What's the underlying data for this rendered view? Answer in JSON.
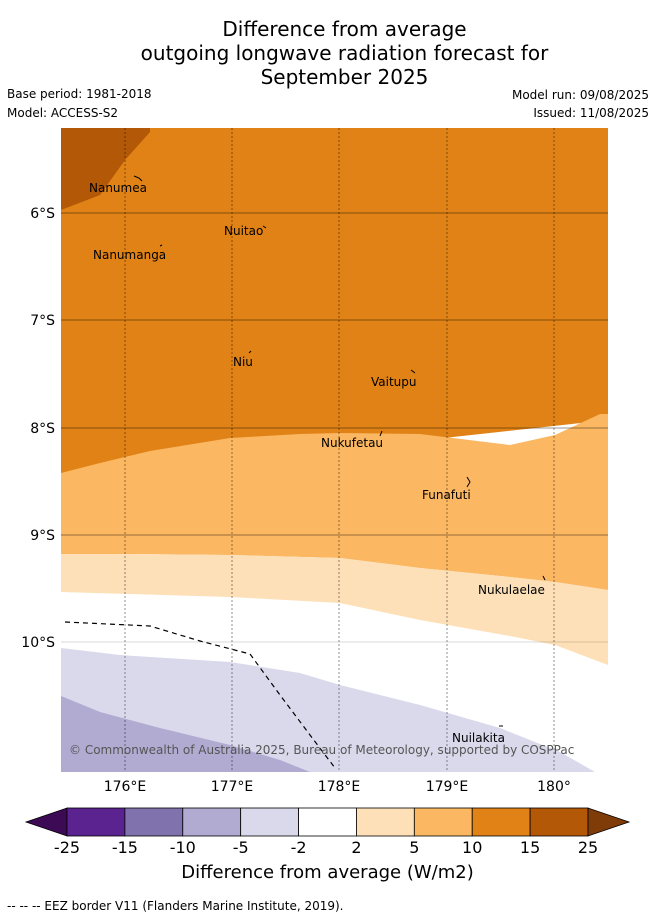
{
  "title": {
    "line1": "Difference from average",
    "line2": "outgoing longwave radiation forecast for",
    "line3": "September 2025"
  },
  "meta": {
    "base_period": "Base period: 1981-2018",
    "model": "Model: ACCESS-S2",
    "model_run": "Model run: 09/08/2025",
    "issued": "Issued: 11/08/2025"
  },
  "map": {
    "lon_ticks": [
      "176°E",
      "177°E",
      "178°E",
      "179°E",
      "180°"
    ],
    "lat_ticks": [
      "6°S",
      "7°S",
      "8°S",
      "9°S",
      "10°S"
    ],
    "place_labels": {
      "nanumea": "Nanumea",
      "nuitao": "Nuitao",
      "nanumanga": "Nanumanga",
      "niu": "Niu",
      "vaitupu": "Vaitupu",
      "nukufetau": "Nukufetau",
      "funafuti": "Funafuti",
      "nukulaelae": "Nukulaelae",
      "nuilakita": "Nuilakita"
    },
    "credit": "© Commonwealth of Australia 2025, Bureau of Meteorology, supported by COSPPac"
  },
  "colorbar": {
    "tick_labels": [
      "-25",
      "-15",
      "-10",
      "-5",
      "-2",
      "2",
      "5",
      "10",
      "15",
      "25"
    ],
    "colors": [
      "#3d0a55",
      "#5a2390",
      "#8072ad",
      "#b1aad1",
      "#d9d9eb",
      "#ffffff",
      "#fde0b7",
      "#fbb762",
      "#e08216",
      "#b35806",
      "#7f3b08"
    ],
    "label": "Difference from average (W/m2)"
  },
  "footer": {
    "legend": "-- -- -- EEZ border V11 (Flanders Marine Institute, 2019)."
  }
}
